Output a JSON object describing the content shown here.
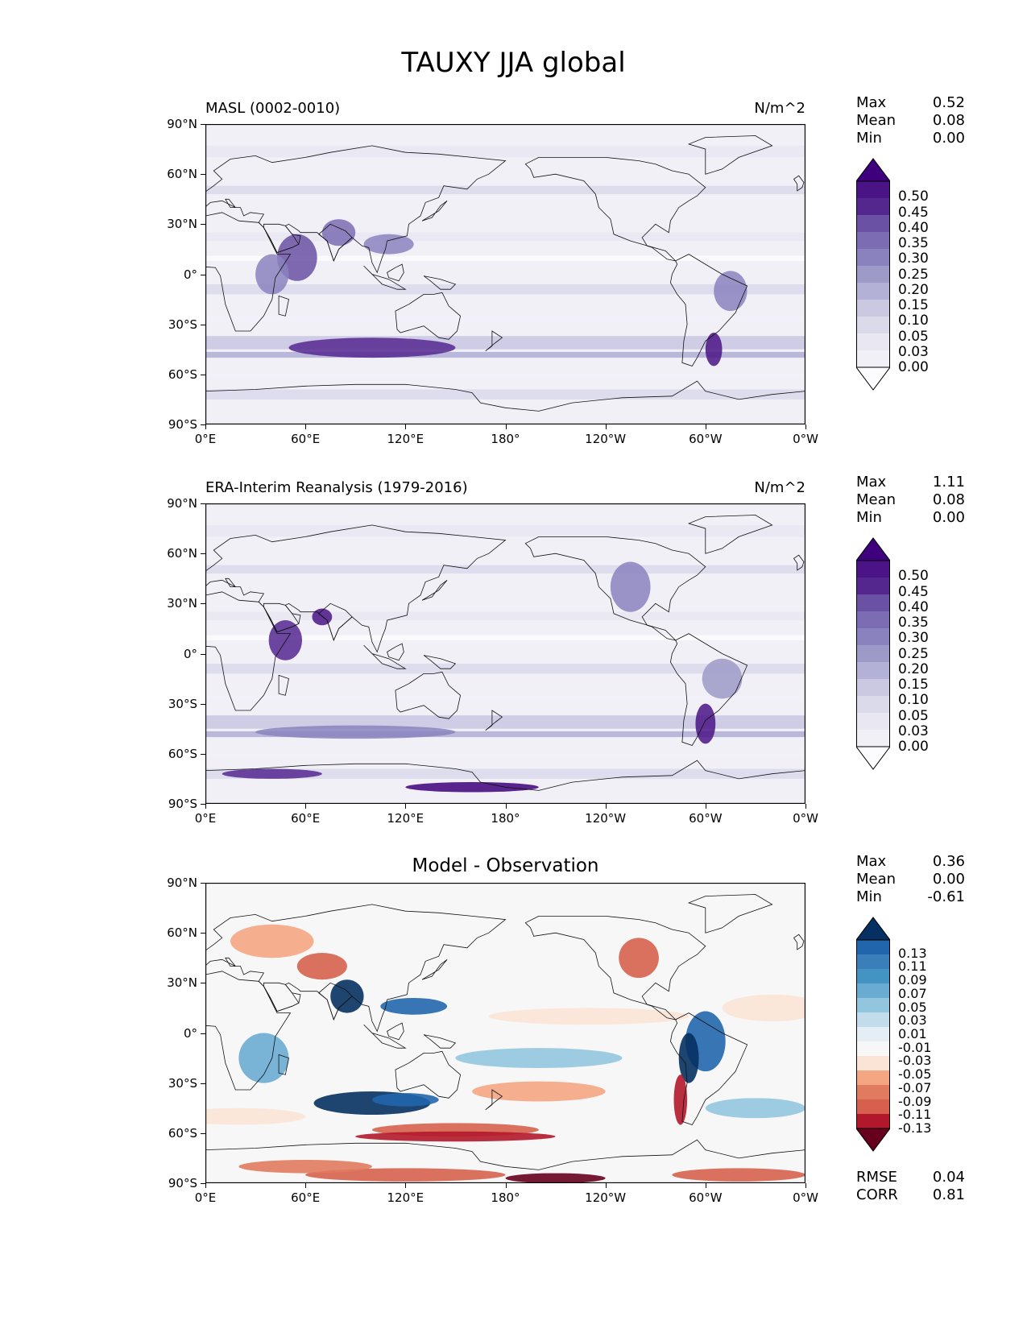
{
  "title": "TAUXY JJA global",
  "lat_ticks": [
    "90°N",
    "60°N",
    "30°N",
    "0°",
    "30°S",
    "60°S",
    "90°S"
  ],
  "lon_ticks": [
    "0°E",
    "60°E",
    "120°E",
    "180°",
    "120°W",
    "60°W",
    "0°W"
  ],
  "panels": [
    {
      "id": "model",
      "left_title": "MASL (0002-0010)",
      "center_title": "",
      "right_title": "N/m^2",
      "colormap": "purples",
      "stats": [
        {
          "name": "Max",
          "value": "0.52"
        },
        {
          "name": "Mean",
          "value": "0.08"
        },
        {
          "name": "Min",
          "value": "0.00"
        }
      ],
      "colorbar_levels": [
        "0.50",
        "0.45",
        "0.40",
        "0.35",
        "0.30",
        "0.25",
        "0.20",
        "0.15",
        "0.10",
        "0.05",
        "0.03",
        "0.00"
      ],
      "colorbar_colors": [
        "#3f007d",
        "#4a1486",
        "#54278f",
        "#6a51a3",
        "#7b6cb3",
        "#8a82be",
        "#9e9ac8",
        "#b3b1d6",
        "#cbc9e2",
        "#dadaeb",
        "#e8e7f2",
        "#f2f0f7",
        "#fcfbfd"
      ]
    },
    {
      "id": "obs",
      "left_title": "ERA-Interim Reanalysis (1979-2016)",
      "center_title": "",
      "right_title": "N/m^2",
      "colormap": "purples",
      "stats": [
        {
          "name": "Max",
          "value": "1.11"
        },
        {
          "name": "Mean",
          "value": "0.08"
        },
        {
          "name": "Min",
          "value": "0.00"
        }
      ],
      "colorbar_levels": [
        "0.50",
        "0.45",
        "0.40",
        "0.35",
        "0.30",
        "0.25",
        "0.20",
        "0.15",
        "0.10",
        "0.05",
        "0.03",
        "0.00"
      ],
      "colorbar_colors": [
        "#3f007d",
        "#4a1486",
        "#54278f",
        "#6a51a3",
        "#7b6cb3",
        "#8a82be",
        "#9e9ac8",
        "#b3b1d6",
        "#cbc9e2",
        "#dadaeb",
        "#e8e7f2",
        "#f2f0f7",
        "#fcfbfd"
      ]
    },
    {
      "id": "diff",
      "left_title": "",
      "center_title": "Model - Observation",
      "right_title": "",
      "colormap": "rdbu",
      "stats": [
        {
          "name": "Max",
          "value": "0.36"
        },
        {
          "name": "Mean",
          "value": "0.00"
        },
        {
          "name": "Min",
          "value": "-0.61"
        }
      ],
      "colorbar_levels": [
        "0.13",
        "0.11",
        "0.09",
        "0.07",
        "0.05",
        "0.03",
        "0.01",
        "-0.01",
        "-0.03",
        "-0.05",
        "-0.07",
        "-0.09",
        "-0.11",
        "-0.13"
      ],
      "colorbar_colors": [
        "#053061",
        "#2166ac",
        "#3a7fba",
        "#4393c3",
        "#6aabd2",
        "#92c5de",
        "#c3dcec",
        "#e6eef5",
        "#f7f7f7",
        "#fbe3d6",
        "#f4a582",
        "#e07b5f",
        "#d6604d",
        "#b2182b",
        "#67001f"
      ],
      "extra_stats": [
        {
          "name": "RMSE",
          "value": "0.04"
        },
        {
          "name": "CORR",
          "value": "0.81"
        }
      ]
    }
  ]
}
